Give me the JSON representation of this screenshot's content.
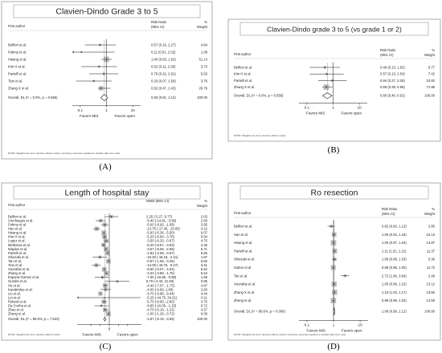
{
  "chart_data": [
    {
      "type": "forest",
      "panel_label": "(A)",
      "title": "Clavien-Dindo Grade 3 to 5",
      "header_author": "First author",
      "header_stat": "Risk Ratio",
      "header_ci": "(95% CI)",
      "header_weight_top": "%",
      "header_weight": "Weight",
      "studies": [
        {
          "label": "Belfiori et al.",
          "est": 0.57,
          "lo": 0.15,
          "hi": 2.27,
          "ci": "0.57 (0.15, 2.27)",
          "weight": "4.84"
        },
        {
          "label": "Fahmy et al.",
          "est": 0.11,
          "lo": 0.01,
          "hi": 2.02,
          "ci": "0.11 (0.01, 2.02)",
          "weight": "1.08"
        },
        {
          "label": "Hsiang et al.",
          "est": 1.0,
          "lo": 0.63,
          "hi": 1.62,
          "ci": "1.00 (0.63, 1.62)",
          "weight": "51.14"
        },
        {
          "label": "Kim H et al.",
          "est": 0.52,
          "lo": 0.11,
          "hi": 2.5,
          "ci": "0.52 (0.11, 2.50)",
          "weight": "3.73"
        },
        {
          "label": "Partelli et al.",
          "est": 0.79,
          "lo": 0.22,
          "hi": 2.81,
          "ci": "0.79 (0.22, 2.81)",
          "weight": "5.63"
        },
        {
          "label": "Tian et al.",
          "est": 0.33,
          "lo": 0.07,
          "hi": 1.59,
          "ci": "0.33 (0.07, 1.59)",
          "weight": "3.76"
        },
        {
          "label": "Zhang X et al.",
          "est": 0.62,
          "lo": 0.47,
          "hi": 1.43,
          "ci": "0.62 (0.47, 1.43)",
          "weight": "29.79"
        }
      ],
      "overall": {
        "label": "Overall, DL (I² = 0.0%, p = 0.665)",
        "est": 0.83,
        "lo": 0.61,
        "hi": 1.12,
        "ci": "0.83 (0.61, 1.12)",
        "weight": "100.00"
      },
      "axis": {
        "scale": "log",
        "range": [
          0.05,
          20
        ],
        "ticks": [
          0.1,
          1,
          10
        ],
        "tick_labels": [
          "0.1",
          "1",
          "10"
        ],
        "null_line": 1
      },
      "favors_left": "Favors MIS",
      "favors_right": "Favors open",
      "note": "NOTE: Weights are from random-effects model; continuity correction applied to studies with zero cells"
    },
    {
      "type": "forest",
      "panel_label": "(B)",
      "title": "Clavien-Dindo grade 3 to 5 (vs grade 1 or 2)",
      "header_author": "First author",
      "header_stat": "Risk Ratio",
      "header_ci": "(95% CI)",
      "header_weight_top": "%",
      "header_weight": "Weight",
      "studies": [
        {
          "label": "Belfiori et al.",
          "est": 0.49,
          "lo": 0.13,
          "hi": 1.82,
          "ci": "0.49 (0.13, 1.82)",
          "weight": "9.77"
        },
        {
          "label": "Kim H et al.",
          "est": 0.57,
          "lo": 0.13,
          "hi": 2.54,
          "ci": "0.57 (0.13, 2.54)",
          "weight": "7.42"
        },
        {
          "label": "Partelli et al.",
          "est": 0.94,
          "lo": 0.27,
          "hi": 3.29,
          "ci": "0.94 (0.27, 3.29)",
          "weight": "10.82"
        },
        {
          "label": "Zhang X et al.",
          "est": 0.55,
          "lo": 0.39,
          "hi": 0.96,
          "ci": "0.55 (0.39, 0.96)",
          "weight": "71.99"
        }
      ],
      "overall": {
        "label": "Overall, DL (I² = 0.0%, p = 0.956)",
        "est": 0.6,
        "lo": 0.4,
        "hi": 0.91,
        "ci": "0.60 (0.40, 0.91)",
        "weight": "100.00"
      },
      "axis": {
        "scale": "log",
        "range": [
          0.05,
          20
        ],
        "ticks": [
          0.1,
          1,
          10
        ],
        "tick_labels": [
          "0.1",
          "1",
          "10"
        ],
        "null_line": 1
      },
      "favors_left": "Favors MIS",
      "favors_right": "Favors open",
      "note": "NOTE: Weights are from random-effects model"
    },
    {
      "type": "forest",
      "panel_label": "(C)",
      "title": "Length of hospital stay",
      "header_author": "First author",
      "header_stat": "WMD (95% CI)",
      "header_ci": "",
      "header_weight_top": "%",
      "header_weight": "Weight",
      "studies": [
        {
          "label": "Belfiori et al.",
          "est": 2.25,
          "lo": -5.27,
          "hi": 9.77,
          "ci": "2.25 (-5.27, 9.77)",
          "weight": "2.03"
        },
        {
          "label": "Cienfuegos et al.",
          "est": -9.4,
          "lo": -14.81,
          "hi": -3.99,
          "ci": "-9.40 (-14.81, -3.99)",
          "weight": "2.69"
        },
        {
          "label": "Fahmy et al.",
          "est": -5.0,
          "lo": -8.92,
          "hi": -1.08,
          "ci": "-5.00 (-8.92, -1.08)",
          "weight": "3.95"
        },
        {
          "label": "Han et al.",
          "est": -13.75,
          "lo": -17.45,
          "hi": -10.05,
          "ci": "-13.75 (-17.45, -10.05)",
          "weight": "4.12"
        },
        {
          "label": "Hsiang et al.",
          "est": -5.93,
          "lo": -6.36,
          "hi": -5.5,
          "ci": "-5.93 (-6.36, -5.50)",
          "weight": "6.07"
        },
        {
          "label": "Kim H et al.",
          "est": -5.2,
          "lo": -6.64,
          "hi": -3.76,
          "ci": "-5.20 (-6.64, -3.76)",
          "weight": "5.64"
        },
        {
          "label": "Lopez et al.",
          "est": -3.5,
          "lo": -6.33,
          "hi": -0.67,
          "ci": "-3.50 (-6.33, -0.67)",
          "weight": "4.75"
        },
        {
          "label": "Mellenias et al.",
          "est": -6.2,
          "lo": -8.57,
          "hi": -3.83,
          "ci": "-6.20 (-8.57, -3.83)",
          "weight": "4.35"
        },
        {
          "label": "Niaples et al.",
          "est": -3.57,
          "lo": -5.06,
          "hi": -2.08,
          "ci": "-3.57 (-5.06, -2.08)",
          "weight": "5.71"
        },
        {
          "label": "Partelli et al.",
          "est": -1.83,
          "lo": -2.69,
          "hi": -0.97,
          "ci": "-1.83 (-2.69, -0.97)",
          "weight": "5.85"
        },
        {
          "label": "Shiozaki et al.",
          "est": -10.2,
          "lo": -18.18,
          "hi": -2.21,
          "ci": "-10.20 (-18.18, -2.21)",
          "weight": "1.87"
        },
        {
          "label": "Tan et al.",
          "est": -0.97,
          "lo": -1.58,
          "hi": -0.25,
          "ci": "-0.97 (-1.58, -0.25)",
          "weight": "5.82"
        },
        {
          "label": "Tian et al.",
          "est": -14.09,
          "lo": -18.75,
          "hi": -9.27,
          "ci": "-14.09 (-18.75, -9.27)",
          "weight": "3.41"
        },
        {
          "label": "Xourafas et al.",
          "est": -5.5,
          "lo": -6.07,
          "hi": -4.93,
          "ci": "-5.50 (-6.07, -4.93)",
          "weight": "5.62"
        },
        {
          "label": "Zhang et al.",
          "est": -3.33,
          "lo": -3.88,
          "hi": -1.75,
          "ci": "-3.33 (-3.88, -1.75)",
          "weight": "5.54"
        },
        {
          "label": "Espana-Gomez et al.",
          "est": -7.5,
          "lo": -15.89,
          "hi": -0.89,
          "ci": "-7.50 (-15.89, -0.89)",
          "weight": "1.59"
        },
        {
          "label": "Gumbs et al.",
          "est": 8.7,
          "lo": -4.43,
          "hi": 21.83,
          "ci": "8.70 (-4.43, 21.83)",
          "weight": "0.85"
        },
        {
          "label": "Hu et al.",
          "est": -4.4,
          "lo": -7.07,
          "hi": -1.73,
          "ci": "-4.40 (-7.07, -1.73)",
          "weight": "4.87"
        },
        {
          "label": "Karabicilas et al.",
          "est": -4.0,
          "lo": -9.69,
          "hi": 1.69,
          "ci": "-4.00 (-9.69, 1.69)",
          "weight": "2.60"
        },
        {
          "label": "Liu et al.",
          "est": -9.7,
          "lo": -9.96,
          "hi": -9.44,
          "ci": "-9.70 (-9.96, -9.44)",
          "weight": "4.44"
        },
        {
          "label": "Lei et al.",
          "est": -5.25,
          "lo": -44.75,
          "hi": 34.21,
          "ci": "-5.25 (-44.75, 34.21)",
          "weight": "0.11"
        },
        {
          "label": "Roland et al.",
          "est": -5.7,
          "lo": -8.6,
          "hi": -2.8,
          "ci": "-5.70 (-8.60, -2.80)",
          "weight": "4.70"
        },
        {
          "label": "Da Cunha et al.",
          "est": -8.6,
          "lo": -16.05,
          "hi": -1.15,
          "ci": "-8.60 (-16.05, -1.15)",
          "weight": "0.72"
        },
        {
          "label": "Zhao et al.",
          "est": -4.7,
          "lo": -6.16,
          "hi": -1.22,
          "ci": "-4.70 (-6.16, -1.22)",
          "weight": "4.27"
        },
        {
          "label": "Zheng et al.",
          "est": -1.0,
          "lo": -1.28,
          "hi": -0.72,
          "ci": "-1.00 (-1.28, -0.72)",
          "weight": "6.09"
        }
      ],
      "overall": {
        "label": "Overall, DL (I² = 95.9%, p = 7.543)",
        "est": -4.87,
        "lo": -6.19,
        "hi": -3.55,
        "ci": "-4.87 (-6.19, -3.55)",
        "weight": "100.00"
      },
      "axis": {
        "scale": "linear",
        "range": [
          -35,
          35
        ],
        "ticks": [
          -20,
          -10,
          0,
          10,
          20
        ],
        "tick_labels": [
          "",
          "",
          "0",
          "",
          ""
        ],
        "null_line": 0
      },
      "favors_left": "Favors MIS",
      "favors_right": "Favors open",
      "note": "NOTE: Weights are from random-effects model"
    },
    {
      "type": "forest",
      "panel_label": "(D)",
      "title": "Ro resection",
      "header_author": "First author",
      "header_stat": "Risk Ratio",
      "header_ci": "(95% CI)",
      "header_weight_top": "%",
      "header_weight": "Weight",
      "studies": [
        {
          "label": "Belfiori et al.",
          "est": 0.82,
          "lo": 0.6,
          "hi": 1.13,
          "ci": "0.82 (0.60, 1.13)",
          "weight": "2.85"
        },
        {
          "label": "Han et al.",
          "est": 1.05,
          "lo": 0.94,
          "hi": 1.18,
          "ci": "1.05 (0.94, 1.18)",
          "weight": "10.13"
        },
        {
          "label": "Hsiang et al.",
          "est": 1.0,
          "lo": 0.97,
          "hi": 1.04,
          "ci": "1.00 (0.97, 1.04)",
          "weight": "14.87"
        },
        {
          "label": "Partelli et al.",
          "est": 1.11,
          "lo": 1.01,
          "hi": 1.21,
          "ci": "1.11 (1.01, 1.21)",
          "weight": "11.37"
        },
        {
          "label": "Shiozaki et al.",
          "est": 1.08,
          "lo": 0.88,
          "hi": 1.33,
          "ci": "1.08 (0.88, 1.33)",
          "weight": "5.36"
        },
        {
          "label": "Sutton et al.",
          "est": 0.98,
          "lo": 0.96,
          "hi": 1.0,
          "ci": "0.98 (0.96, 1.00)",
          "weight": "11.72"
        },
        {
          "label": "Tan et al.",
          "est": 2.72,
          "lo": 1.9,
          "hi": 3.84,
          "ci": "2.72 (1.90, 3.84)",
          "weight": "2.49"
        },
        {
          "label": "Xourafas et al.",
          "est": 1.05,
          "lo": 0.96,
          "hi": 1.15,
          "ci": "1.05 (0.96, 1.15)",
          "weight": "13.12"
        },
        {
          "label": "Zhang X et al.",
          "est": 1.1,
          "lo": 1.03,
          "hi": 1.17,
          "ci": "1.10 (1.03, 1.17)",
          "weight": "13.50"
        },
        {
          "label": "Zheng et al.",
          "est": 0.99,
          "lo": 0.96,
          "hi": 1.02,
          "ci": "0.99 (0.96, 1.02)",
          "weight": "14.59"
        }
      ],
      "overall": {
        "label": "Overall, DL (I² = 86.6%, p = 0.000)",
        "est": 1.06,
        "lo": 0.99,
        "hi": 1.12,
        "ci": "1.06 (0.99, 1.12)",
        "weight": "100.00"
      },
      "axis": {
        "scale": "log",
        "range": [
          0.05,
          20
        ],
        "ticks": [
          0.1,
          1,
          10
        ],
        "tick_labels": [
          "0.1",
          "1",
          "10"
        ],
        "null_line": 1
      },
      "favors_left": "Favors MIS",
      "favors_right": "Favors open",
      "note": "NOTE: Weights are from random-effects model; continuity correction applied to studies with zero cells"
    }
  ],
  "style": {
    "ink": "#111111",
    "border": "#9a9a9a",
    "box_fill": "#7f7f7f"
  }
}
